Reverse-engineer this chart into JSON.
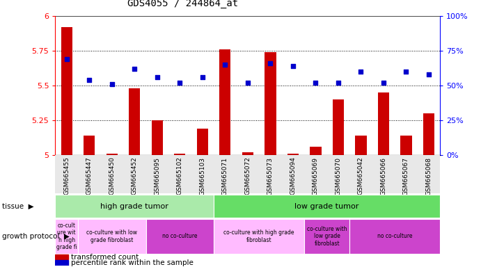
{
  "title": "GDS4055 / 244864_at",
  "samples": [
    "GSM665455",
    "GSM665447",
    "GSM665450",
    "GSM665452",
    "GSM665095",
    "GSM665102",
    "GSM665103",
    "GSM665071",
    "GSM665072",
    "GSM665073",
    "GSM665094",
    "GSM665069",
    "GSM665070",
    "GSM665042",
    "GSM665066",
    "GSM665067",
    "GSM665068"
  ],
  "transformed_count": [
    5.92,
    5.14,
    5.01,
    5.48,
    5.25,
    5.01,
    5.19,
    5.76,
    5.02,
    5.74,
    5.01,
    5.06,
    5.4,
    5.14,
    5.45,
    5.14,
    5.3
  ],
  "percentile_rank": [
    69,
    54,
    51,
    62,
    56,
    52,
    56,
    65,
    52,
    66,
    64,
    52,
    52,
    60,
    52,
    60,
    58
  ],
  "ylim_left": [
    5.0,
    6.0
  ],
  "ylim_right": [
    0,
    100
  ],
  "yticks_left": [
    5.0,
    5.25,
    5.5,
    5.75,
    6.0
  ],
  "yticks_right": [
    0,
    25,
    50,
    75,
    100
  ],
  "bar_color": "#cc0000",
  "dot_color": "#0000cc",
  "tissue_groups": [
    {
      "label": "high grade tumor",
      "start": 0,
      "end": 7,
      "color": "#aaeaaa"
    },
    {
      "label": "low grade tumor",
      "start": 7,
      "end": 17,
      "color": "#66dd66"
    }
  ],
  "growth_protocol_groups": [
    {
      "label": "co-cult\nure wit\nh high\ngrade fi",
      "start": 0,
      "end": 1,
      "color": "#ffbbff"
    },
    {
      "label": "co-culture with low\ngrade fibroblast",
      "start": 1,
      "end": 4,
      "color": "#ffbbff"
    },
    {
      "label": "no co-culture",
      "start": 4,
      "end": 7,
      "color": "#cc44cc"
    },
    {
      "label": "co-culture with high grade\nfibroblast",
      "start": 7,
      "end": 11,
      "color": "#ffbbff"
    },
    {
      "label": "co-culture with\nlow grade\nfibroblast",
      "start": 11,
      "end": 13,
      "color": "#cc44cc"
    },
    {
      "label": "no co-culture",
      "start": 13,
      "end": 17,
      "color": "#cc44cc"
    }
  ],
  "dotted_lines": [
    5.25,
    5.5,
    5.75
  ],
  "bg_color": "#ffffff"
}
